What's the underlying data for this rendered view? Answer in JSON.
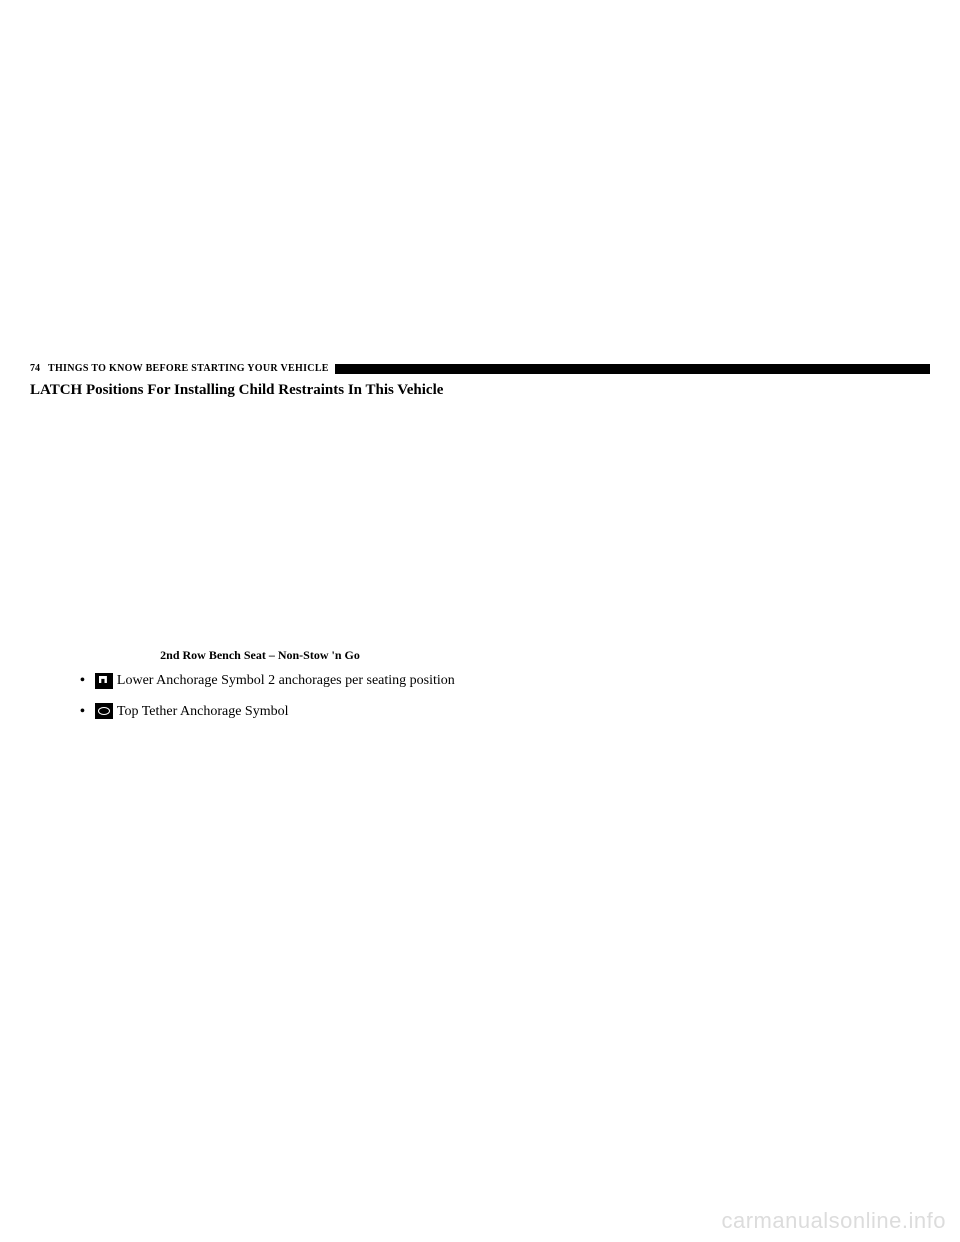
{
  "header": {
    "page_number": "74",
    "header_text": "THINGS TO KNOW BEFORE STARTING YOUR VEHICLE"
  },
  "section_title": "LATCH Positions For Installing Child Restraints In This Vehicle",
  "caption": "2nd Row Bench Seat – Non-Stow 'n Go",
  "bullets": [
    {
      "icon_type": "lower",
      "text": "Lower Anchorage Symbol 2 anchorages per seating position"
    },
    {
      "icon_type": "tether",
      "text": "Top Tether Anchorage Symbol"
    }
  ],
  "watermark": "carmanualsonline.info"
}
